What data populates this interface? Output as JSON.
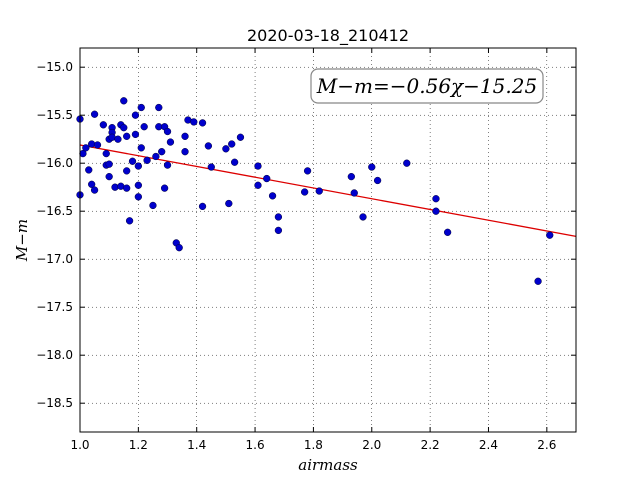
{
  "chart_data": {
    "type": "scatter",
    "title": "2020-03-18_210412",
    "xlabel": "airmass",
    "ylabel": "M−m",
    "xlim": [
      1.0,
      2.7
    ],
    "ylim": [
      -18.8,
      -14.8
    ],
    "y_inverted": true,
    "grid": true,
    "x_ticks": [
      1.0,
      1.2,
      1.4,
      1.6,
      1.8,
      2.0,
      2.2,
      2.4,
      2.6
    ],
    "x_tick_labels": [
      "1.0",
      "1.2",
      "1.4",
      "1.6",
      "1.8",
      "2.0",
      "2.2",
      "2.4",
      "2.6"
    ],
    "y_ticks": [
      -15.0,
      -15.5,
      -16.0,
      -16.5,
      -17.0,
      -17.5,
      -18.0,
      -18.5
    ],
    "y_tick_labels": [
      "−15.0",
      "−15.5",
      "−16.0",
      "−16.5",
      "−17.0",
      "−17.5",
      "−18.0",
      "−18.5"
    ],
    "annotation": "M−m=−0.56χ−15.25",
    "annotation_position": "top-right",
    "fit_line": {
      "slope": -0.56,
      "intercept": -15.25,
      "x_range": [
        1.0,
        2.7
      ],
      "color": "#dd0000"
    },
    "marker_color": "#0000cc",
    "points": [
      [
        1.0,
        -15.54
      ],
      [
        1.0,
        -16.33
      ],
      [
        1.01,
        -15.9
      ],
      [
        1.02,
        -15.84
      ],
      [
        1.03,
        -16.07
      ],
      [
        1.04,
        -15.8
      ],
      [
        1.04,
        -16.22
      ],
      [
        1.05,
        -15.49
      ],
      [
        1.05,
        -16.28
      ],
      [
        1.06,
        -15.81
      ],
      [
        1.08,
        -15.6
      ],
      [
        1.09,
        -16.02
      ],
      [
        1.09,
        -15.9
      ],
      [
        1.1,
        -15.75
      ],
      [
        1.1,
        -16.01
      ],
      [
        1.1,
        -16.14
      ],
      [
        1.11,
        -15.63
      ],
      [
        1.11,
        -15.68
      ],
      [
        1.11,
        -15.73
      ],
      [
        1.12,
        -16.25
      ],
      [
        1.13,
        -15.75
      ],
      [
        1.14,
        -15.6
      ],
      [
        1.14,
        -16.24
      ],
      [
        1.15,
        -15.35
      ],
      [
        1.15,
        -15.63
      ],
      [
        1.16,
        -15.72
      ],
      [
        1.16,
        -16.08
      ],
      [
        1.16,
        -16.26
      ],
      [
        1.17,
        -16.6
      ],
      [
        1.18,
        -15.98
      ],
      [
        1.19,
        -15.5
      ],
      [
        1.19,
        -15.7
      ],
      [
        1.2,
        -16.03
      ],
      [
        1.2,
        -16.23
      ],
      [
        1.2,
        -16.35
      ],
      [
        1.21,
        -15.42
      ],
      [
        1.21,
        -15.84
      ],
      [
        1.22,
        -15.62
      ],
      [
        1.23,
        -15.97
      ],
      [
        1.25,
        -16.44
      ],
      [
        1.26,
        -15.93
      ],
      [
        1.27,
        -15.42
      ],
      [
        1.27,
        -15.62
      ],
      [
        1.28,
        -15.88
      ],
      [
        1.29,
        -16.26
      ],
      [
        1.29,
        -15.62
      ],
      [
        1.3,
        -15.67
      ],
      [
        1.3,
        -16.02
      ],
      [
        1.31,
        -15.78
      ],
      [
        1.33,
        -16.83
      ],
      [
        1.34,
        -16.88
      ],
      [
        1.36,
        -15.72
      ],
      [
        1.36,
        -15.88
      ],
      [
        1.37,
        -15.55
      ],
      [
        1.39,
        -15.57
      ],
      [
        1.42,
        -15.58
      ],
      [
        1.42,
        -16.45
      ],
      [
        1.44,
        -15.82
      ],
      [
        1.45,
        -16.04
      ],
      [
        1.5,
        -15.85
      ],
      [
        1.51,
        -16.42
      ],
      [
        1.52,
        -15.8
      ],
      [
        1.53,
        -15.99
      ],
      [
        1.55,
        -15.73
      ],
      [
        1.61,
        -16.03
      ],
      [
        1.61,
        -16.23
      ],
      [
        1.64,
        -16.16
      ],
      [
        1.66,
        -16.34
      ],
      [
        1.68,
        -16.56
      ],
      [
        1.68,
        -16.7
      ],
      [
        1.77,
        -16.3
      ],
      [
        1.78,
        -16.08
      ],
      [
        1.82,
        -16.29
      ],
      [
        1.93,
        -16.14
      ],
      [
        1.94,
        -16.31
      ],
      [
        1.97,
        -16.56
      ],
      [
        2.0,
        -16.04
      ],
      [
        2.02,
        -16.18
      ],
      [
        2.12,
        -16.0
      ],
      [
        2.22,
        -16.37
      ],
      [
        2.22,
        -16.5
      ],
      [
        2.26,
        -16.72
      ],
      [
        2.57,
        -17.23
      ],
      [
        2.61,
        -16.75
      ]
    ]
  }
}
